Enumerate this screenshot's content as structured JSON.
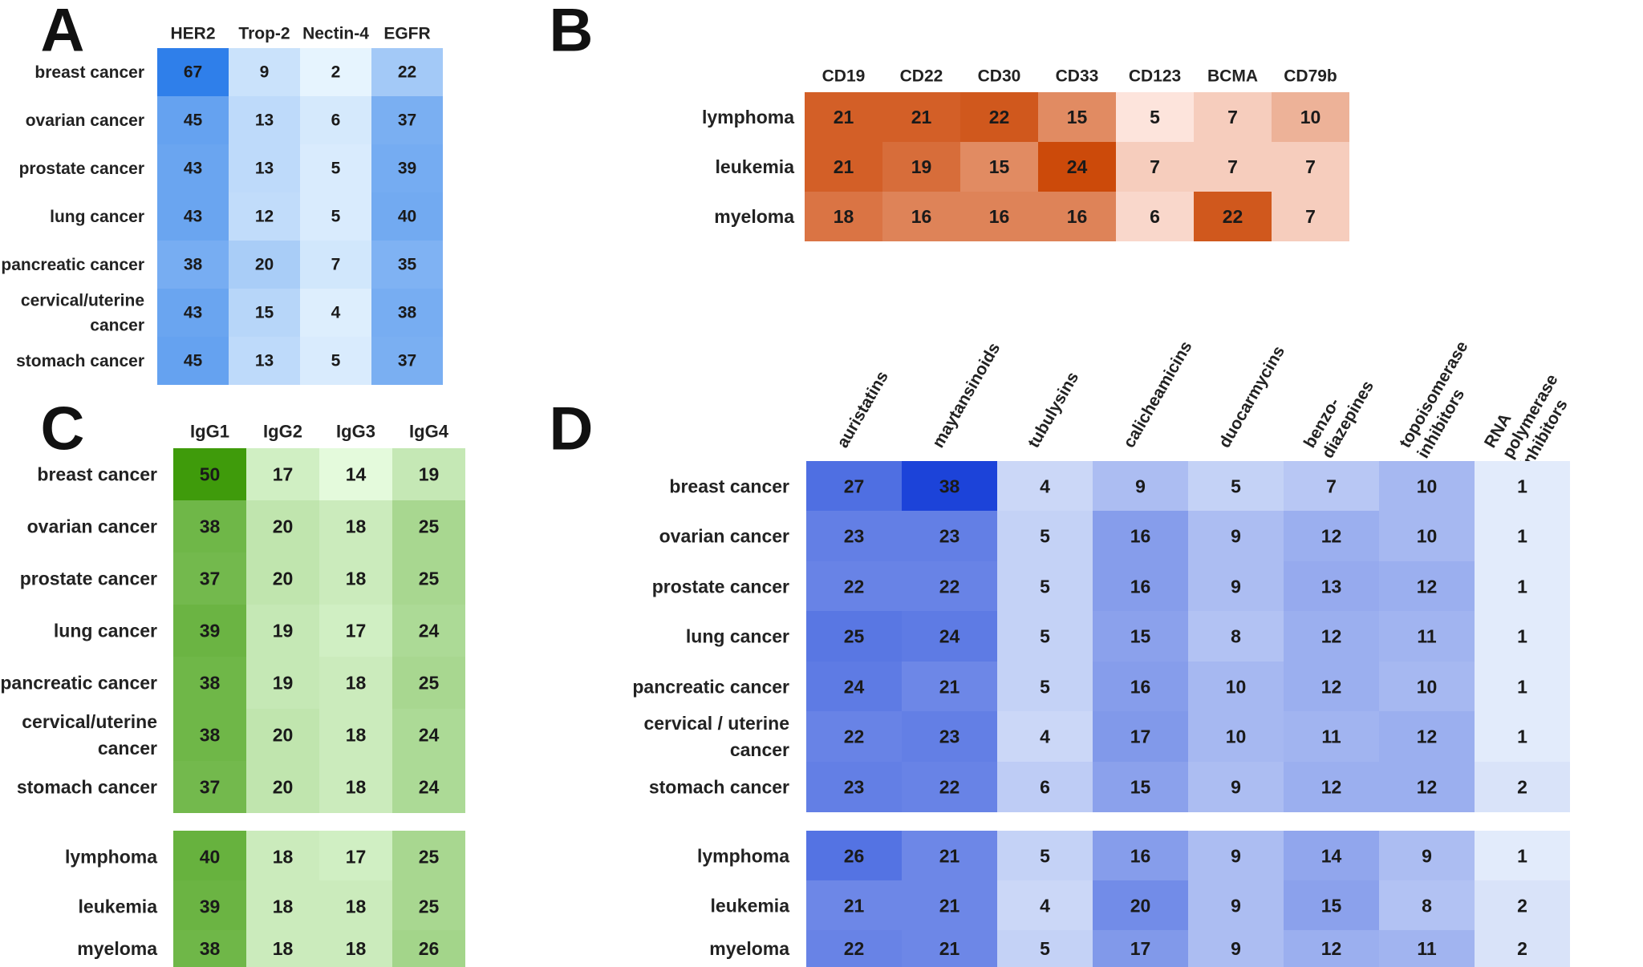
{
  "chart_data": [
    {
      "type": "heatmap",
      "panel": "A",
      "color_scheme": "blue",
      "columns": [
        "HER2",
        "Trop-2",
        "Nectin-4",
        "EGFR"
      ],
      "rows": [
        {
          "label": [
            "breast cancer"
          ],
          "values": [
            67,
            9,
            2,
            22
          ]
        },
        {
          "label": [
            "ovarian cancer"
          ],
          "values": [
            45,
            13,
            6,
            37
          ]
        },
        {
          "label": [
            "prostate cancer"
          ],
          "values": [
            43,
            13,
            5,
            39
          ]
        },
        {
          "label": [
            "lung cancer"
          ],
          "values": [
            43,
            12,
            5,
            40
          ]
        },
        {
          "label": [
            "pancreatic cancer"
          ],
          "values": [
            38,
            20,
            7,
            35
          ]
        },
        {
          "label": [
            "cervical/uterine",
            "cancer"
          ],
          "values": [
            43,
            15,
            4,
            38
          ]
        },
        {
          "label": [
            "stomach cancer"
          ],
          "values": [
            45,
            13,
            5,
            37
          ]
        }
      ]
    },
    {
      "type": "heatmap",
      "panel": "B",
      "color_scheme": "orange",
      "columns": [
        "CD19",
        "CD22",
        "CD30",
        "CD33",
        "CD123",
        "BCMA",
        "CD79b"
      ],
      "rows": [
        {
          "label": [
            "lymphoma"
          ],
          "values": [
            21,
            21,
            22,
            15,
            5,
            7,
            10
          ]
        },
        {
          "label": [
            "leukemia"
          ],
          "values": [
            21,
            19,
            15,
            24,
            7,
            7,
            7
          ]
        },
        {
          "label": [
            "myeloma"
          ],
          "values": [
            18,
            16,
            16,
            16,
            6,
            22,
            7
          ]
        }
      ]
    },
    {
      "type": "heatmap",
      "panel": "C",
      "color_scheme": "green",
      "columns": [
        "IgG1",
        "IgG2",
        "IgG3",
        "IgG4"
      ],
      "rows": [
        {
          "label": [
            "breast cancer"
          ],
          "values": [
            50,
            17,
            14,
            19
          ]
        },
        {
          "label": [
            "ovarian cancer"
          ],
          "values": [
            38,
            20,
            18,
            25
          ]
        },
        {
          "label": [
            "prostate cancer"
          ],
          "values": [
            37,
            20,
            18,
            25
          ]
        },
        {
          "label": [
            "lung cancer"
          ],
          "values": [
            39,
            19,
            17,
            24
          ]
        },
        {
          "label": [
            "pancreatic cancer"
          ],
          "values": [
            38,
            19,
            18,
            25
          ]
        },
        {
          "label": [
            "cervical/uterine",
            "cancer"
          ],
          "values": [
            38,
            20,
            18,
            24
          ]
        },
        {
          "label": [
            "stomach cancer"
          ],
          "values": [
            37,
            20,
            18,
            24
          ]
        },
        {
          "label": [
            "lymphoma"
          ],
          "values": [
            40,
            18,
            17,
            25
          ]
        },
        {
          "label": [
            "leukemia"
          ],
          "values": [
            39,
            18,
            18,
            25
          ]
        },
        {
          "label": [
            "myeloma"
          ],
          "values": [
            38,
            18,
            18,
            26
          ]
        }
      ]
    },
    {
      "type": "heatmap",
      "panel": "D",
      "color_scheme": "royal-blue",
      "columns": [
        [
          "auristatins"
        ],
        [
          "maytansinoids"
        ],
        [
          "tubulysins"
        ],
        [
          "calicheamicins"
        ],
        [
          "duocarmycins"
        ],
        [
          "benzo-",
          "diazepines"
        ],
        [
          "topoisomerase",
          "inhibitors"
        ],
        [
          "RNA",
          "polymerase",
          "inhibitors"
        ]
      ],
      "rows": [
        {
          "label": [
            "breast cancer"
          ],
          "values": [
            27,
            38,
            4,
            9,
            5,
            7,
            10,
            1
          ]
        },
        {
          "label": [
            "ovarian cancer"
          ],
          "values": [
            23,
            23,
            5,
            16,
            9,
            12,
            10,
            1
          ]
        },
        {
          "label": [
            "prostate cancer"
          ],
          "values": [
            22,
            22,
            5,
            16,
            9,
            13,
            12,
            1
          ]
        },
        {
          "label": [
            "lung cancer"
          ],
          "values": [
            25,
            24,
            5,
            15,
            8,
            12,
            11,
            1
          ]
        },
        {
          "label": [
            "pancreatic cancer"
          ],
          "values": [
            24,
            21,
            5,
            16,
            10,
            12,
            10,
            1
          ]
        },
        {
          "label": [
            "cervical / uterine",
            "cancer"
          ],
          "values": [
            22,
            23,
            4,
            17,
            10,
            11,
            12,
            1
          ]
        },
        {
          "label": [
            "stomach cancer"
          ],
          "values": [
            23,
            22,
            6,
            15,
            9,
            12,
            12,
            2
          ]
        },
        {
          "label": [
            "lymphoma"
          ],
          "values": [
            26,
            21,
            5,
            16,
            9,
            14,
            9,
            1
          ]
        },
        {
          "label": [
            "leukemia"
          ],
          "values": [
            21,
            21,
            4,
            20,
            9,
            15,
            8,
            2
          ]
        },
        {
          "label": [
            "myeloma"
          ],
          "values": [
            22,
            21,
            5,
            17,
            9,
            12,
            11,
            2
          ]
        }
      ]
    }
  ],
  "color_scales": {
    "blue": {
      "low": "#e6f4fe",
      "high": "#2f7fea"
    },
    "orange": {
      "low": "#fde4dc",
      "high": "#cc4a0a"
    },
    "green": {
      "low": "#e4fadc",
      "high": "#3f9b0b"
    },
    "royal-blue": {
      "low": "#e2ebfb",
      "high": "#1c43d9"
    }
  }
}
